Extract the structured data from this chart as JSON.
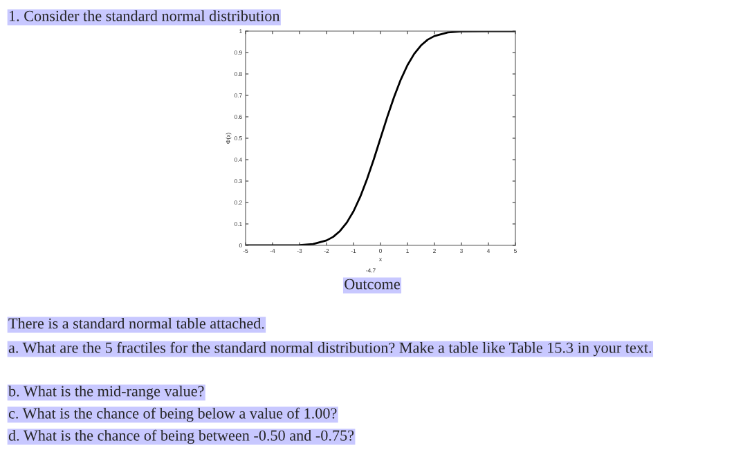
{
  "chart_data": {
    "type": "line",
    "title": "1. Consider the standard normal distribution",
    "xlabel": "x",
    "ylabel": "Φ(x)",
    "x": [
      -5,
      -4,
      -3,
      -2.5,
      -2,
      -1.75,
      -1.5,
      -1.25,
      -1,
      -0.75,
      -0.5,
      -0.25,
      0,
      0.25,
      0.5,
      0.75,
      1,
      1.25,
      1.5,
      1.75,
      2,
      2.5,
      3,
      4,
      5
    ],
    "series": [
      {
        "color": "#000000",
        "values": [
          0,
          0,
          0.001,
          0.006,
          0.023,
          0.04,
          0.067,
          0.106,
          0.159,
          0.227,
          0.309,
          0.401,
          0.5,
          0.599,
          0.691,
          0.773,
          0.841,
          0.894,
          0.933,
          0.96,
          0.977,
          0.994,
          0.999,
          1,
          1
        ]
      }
    ],
    "xlim": [
      -5,
      5
    ],
    "ylim": [
      0,
      1
    ],
    "xticks": [
      -5,
      -4,
      -3,
      -2,
      -1,
      0,
      1,
      2,
      3,
      4,
      5
    ],
    "yticks": [
      0,
      0.1,
      0.2,
      0.3,
      0.4,
      0.5,
      0.6,
      0.7,
      0.8,
      0.9,
      1
    ],
    "grid": false,
    "legend": false,
    "marker": "none",
    "line_style": "solid",
    "annotations": [
      "-4.7",
      "Outcome",
      "There is a standard normal table attached.",
      "a. What are the 5 fractiles for the standard normal distribution? Make a table like Table 15.3 in your text.",
      "b. What is the mid-range value?",
      "c. What is the chance of being below a value of 1.00?",
      "d. What is the chance of being between -0.50 and -0.75?"
    ]
  }
}
